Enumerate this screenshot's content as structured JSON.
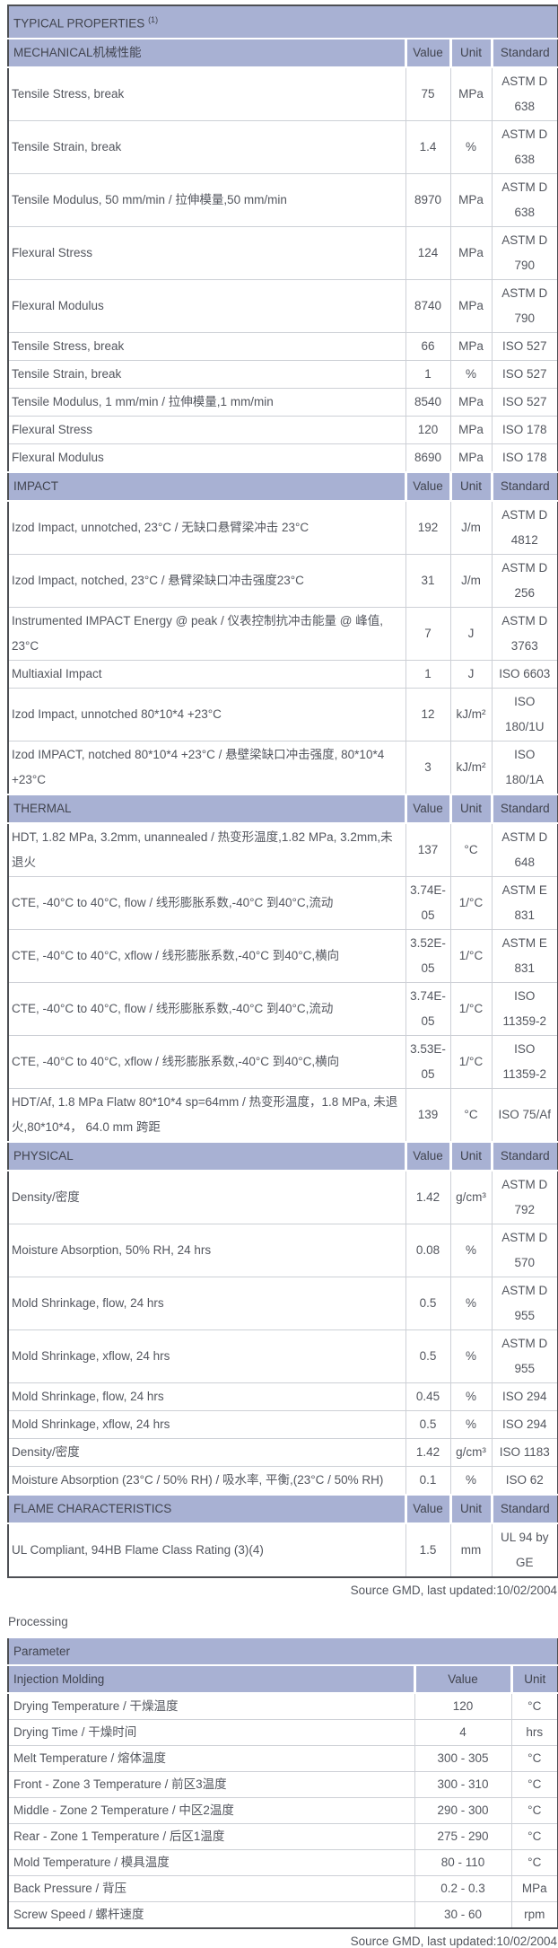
{
  "table1": {
    "title": "TYPICAL PROPERTIES",
    "title_sup": "(1)",
    "columns": [
      "Value",
      "Unit",
      "Standard"
    ],
    "sections": [
      {
        "name": "MECHANICAL机械性能",
        "slug": "mechanical",
        "rows": [
          {
            "p": "Tensile Stress, break",
            "v": "75",
            "u": "MPa",
            "s": "ASTM D 638"
          },
          {
            "p": "Tensile Strain, break",
            "v": "1.4",
            "u": "%",
            "s": "ASTM D 638"
          },
          {
            "p": "Tensile Modulus, 50 mm/min / 拉伸模量,50 mm/min",
            "v": "8970",
            "u": "MPa",
            "s": "ASTM D 638"
          },
          {
            "p": "Flexural Stress",
            "v": "124",
            "u": "MPa",
            "s": "ASTM D 790"
          },
          {
            "p": "Flexural Modulus",
            "v": "8740",
            "u": "MPa",
            "s": "ASTM D 790"
          },
          {
            "p": "Tensile Stress, break",
            "v": "66",
            "u": "MPa",
            "s": "ISO 527"
          },
          {
            "p": "Tensile Strain, break",
            "v": "1",
            "u": "%",
            "s": "ISO 527"
          },
          {
            "p": "Tensile Modulus, 1 mm/min / 拉伸模量,1 mm/min",
            "v": "8540",
            "u": "MPa",
            "s": "ISO 527"
          },
          {
            "p": "Flexural Stress",
            "v": "120",
            "u": "MPa",
            "s": "ISO 178"
          },
          {
            "p": "Flexural Modulus",
            "v": "8690",
            "u": "MPa",
            "s": "ISO 178"
          }
        ]
      },
      {
        "name": "IMPACT",
        "slug": "impact",
        "rows": [
          {
            "p": "Izod Impact, unnotched, 23°C / 无缺口悬臂梁冲击 23°C",
            "v": "192",
            "u": "J/m",
            "s": "ASTM D 4812"
          },
          {
            "p": "Izod Impact, notched, 23°C / 悬臂梁缺口冲击强度23°C",
            "v": "31",
            "u": "J/m",
            "s": "ASTM D 256"
          },
          {
            "p": "Instrumented IMPACT Energy @ peak / 仪表控制抗冲击能量 @ 峰值, 23°C",
            "v": "7",
            "u": "J",
            "s": "ASTM D 3763"
          },
          {
            "p": "Multiaxial Impact",
            "v": "1",
            "u": "J",
            "s": "ISO 6603"
          },
          {
            "p": "Izod Impact, unnotched 80*10*4 +23°C",
            "v": "12",
            "u": "kJ/m²",
            "s": "ISO 180/1U"
          },
          {
            "p": "Izod IMPACT, notched 80*10*4 +23°C / 悬壁梁缺口冲击强度, 80*10*4 +23°C",
            "v": "3",
            "u": "kJ/m²",
            "s": "ISO 180/1A"
          }
        ]
      },
      {
        "name": "THERMAL",
        "slug": "thermal",
        "rows": [
          {
            "p": "HDT, 1.82 MPa, 3.2mm, unannealed / 热变形温度,1.82 MPa, 3.2mm,未退火",
            "v": "137",
            "u": "°C",
            "s": "ASTM D 648"
          },
          {
            "p": "CTE, -40°C to 40°C, flow / 线形膨胀系数,-40°C 到40°C,流动",
            "v": "3.74E-05",
            "u": "1/°C",
            "s": "ASTM E 831"
          },
          {
            "p": "CTE, -40°C to 40°C, xflow / 线形膨胀系数,-40°C 到40°C,横向",
            "v": "3.52E-05",
            "u": "1/°C",
            "s": "ASTM E 831"
          },
          {
            "p": "CTE, -40°C to 40°C, flow / 线形膨胀系数,-40°C 到40°C,流动",
            "v": "3.74E-05",
            "u": "1/°C",
            "s": "ISO 11359-2"
          },
          {
            "p": "CTE, -40°C to 40°C, xflow / 线形膨胀系数,-40°C 到40°C,横向",
            "v": "3.53E-05",
            "u": "1/°C",
            "s": "ISO 11359-2"
          },
          {
            "p": "HDT/Af, 1.8 MPa Flatw 80*10*4 sp=64mm / 热变形温度，1.8 MPa, 未退火,80*10*4， 64.0 mm 跨距",
            "v": "139",
            "u": "°C",
            "s": "ISO 75/Af"
          }
        ]
      },
      {
        "name": "PHYSICAL",
        "slug": "physical",
        "rows": [
          {
            "p": "Density/密度",
            "v": "1.42",
            "u": "g/cm³",
            "s": "ASTM D 792"
          },
          {
            "p": "Moisture Absorption, 50% RH, 24 hrs",
            "v": "0.08",
            "u": "%",
            "s": "ASTM D 570"
          },
          {
            "p": "Mold Shrinkage, flow, 24 hrs",
            "v": "0.5",
            "u": "%",
            "s": "ASTM D 955"
          },
          {
            "p": "Mold Shrinkage, xflow, 24 hrs",
            "v": "0.5",
            "u": "%",
            "s": "ASTM D 955"
          },
          {
            "p": "Mold Shrinkage, flow, 24 hrs",
            "v": "0.45",
            "u": "%",
            "s": "ISO 294"
          },
          {
            "p": "Mold Shrinkage, xflow, 24 hrs",
            "v": "0.5",
            "u": "%",
            "s": "ISO 294"
          },
          {
            "p": "Density/密度",
            "v": "1.42",
            "u": "g/cm³",
            "s": "ISO 1183"
          },
          {
            "p": "Moisture Absorption (23°C / 50% RH) / 吸水率, 平衡,(23°C / 50% RH)",
            "v": "0.1",
            "u": "%",
            "s": "ISO 62"
          }
        ]
      },
      {
        "name": "FLAME CHARACTERISTICS",
        "slug": "flame-characteristics",
        "rows": [
          {
            "p": "UL Compliant, 94HB Flame Class Rating (3)(4)",
            "v": "1.5",
            "u": "mm",
            "s": "UL 94 by GE"
          }
        ]
      }
    ],
    "source": "Source GMD, last updated:10/02/2004"
  },
  "processing": {
    "heading": "Processing",
    "param_header": "Parameter",
    "subheader": "Injection Molding",
    "columns": [
      "Value",
      "Unit"
    ],
    "rows": [
      {
        "p": "Drying Temperature / 干燥温度",
        "v": "120",
        "u": "°C"
      },
      {
        "p": "Drying Time / 干燥时间",
        "v": "4",
        "u": "hrs"
      },
      {
        "p": "Melt Temperature / 熔体温度",
        "v": "300 - 305",
        "u": "°C"
      },
      {
        "p": "Front - Zone 3 Temperature / 前区3温度",
        "v": "300 - 310",
        "u": "°C"
      },
      {
        "p": "Middle - Zone 2 Temperature / 中区2温度",
        "v": "290 - 300",
        "u": "°C"
      },
      {
        "p": "Rear - Zone 1 Temperature / 后区1温度",
        "v": "275 - 290",
        "u": "°C"
      },
      {
        "p": "Mold Temperature / 模具温度",
        "v": "80 - 110",
        "u": "°C"
      },
      {
        "p": "Back Pressure / 背压",
        "v": "0.2 - 0.3",
        "u": "MPa"
      },
      {
        "p": "Screw Speed / 螺杆速度",
        "v": "30 - 60",
        "u": "rpm"
      }
    ],
    "source": "Source GMD, last updated:10/02/2004"
  },
  "colors": {
    "header_band": "#a8b1d3",
    "band_text": "#41444f",
    "body_text": "#53565e",
    "outer_border": "#4d4f54",
    "grid_line": "#cdd0d6"
  }
}
